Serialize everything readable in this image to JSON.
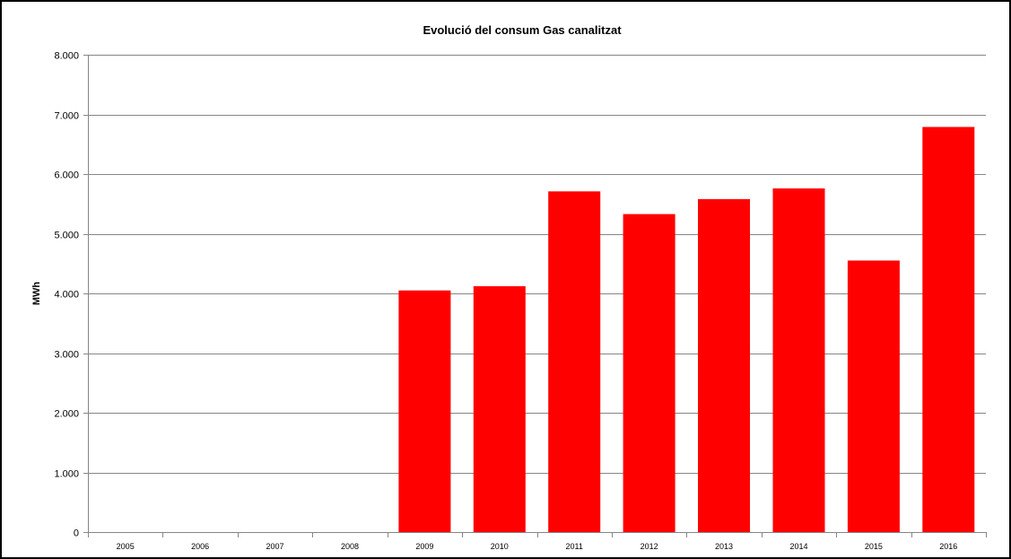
{
  "chart_data": {
    "type": "bar",
    "title": "Evolució del consum Gas canalitzat",
    "xlabel": "",
    "ylabel": "MWh",
    "categories": [
      "2005",
      "2006",
      "2007",
      "2008",
      "2009",
      "2010",
      "2011",
      "2012",
      "2013",
      "2014",
      "2015",
      "2016"
    ],
    "values": [
      0,
      0,
      0,
      0,
      4050,
      4120,
      5710,
      5330,
      5580,
      5760,
      4550,
      6790
    ],
    "ylim": [
      0,
      8000
    ],
    "yticks": [
      0,
      1000,
      2000,
      3000,
      4000,
      5000,
      6000,
      7000,
      8000
    ],
    "ytick_labels": [
      "0",
      "1.000",
      "2.000",
      "3.000",
      "4.000",
      "5.000",
      "6.000",
      "7.000",
      "8.000"
    ],
    "grid": true,
    "legend": "none",
    "bar_color": "#ff0000",
    "grid_color": "#868686"
  }
}
